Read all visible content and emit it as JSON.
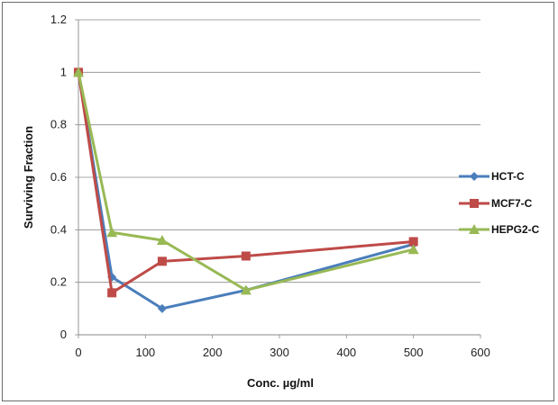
{
  "chart_data": {
    "type": "line",
    "title": "",
    "xlabel": "Conc. µg/ml",
    "ylabel": "Surviving  Fraction",
    "xlim": [
      0,
      600
    ],
    "ylim": [
      0,
      1.2
    ],
    "xticks": [
      0,
      100,
      200,
      300,
      400,
      500,
      600
    ],
    "yticks": [
      0,
      0.2,
      0.4,
      0.6,
      0.8,
      1,
      1.2
    ],
    "grid": "horizontal",
    "legend": "right",
    "series": [
      {
        "name": "HCT-C",
        "color": "#4a7ebb",
        "marker": "diamond",
        "x": [
          0,
          50,
          125,
          250,
          500
        ],
        "y": [
          1.0,
          0.22,
          0.1,
          0.17,
          0.345
        ]
      },
      {
        "name": "MCF7-C",
        "color": "#be4b48",
        "marker": "square",
        "x": [
          0,
          50,
          125,
          250,
          500
        ],
        "y": [
          1.0,
          0.16,
          0.28,
          0.3,
          0.355
        ]
      },
      {
        "name": "HEPG2-C",
        "color": "#98b954",
        "marker": "triangle",
        "x": [
          0,
          50,
          125,
          250,
          500
        ],
        "y": [
          1.0,
          0.39,
          0.36,
          0.17,
          0.325
        ]
      }
    ]
  }
}
